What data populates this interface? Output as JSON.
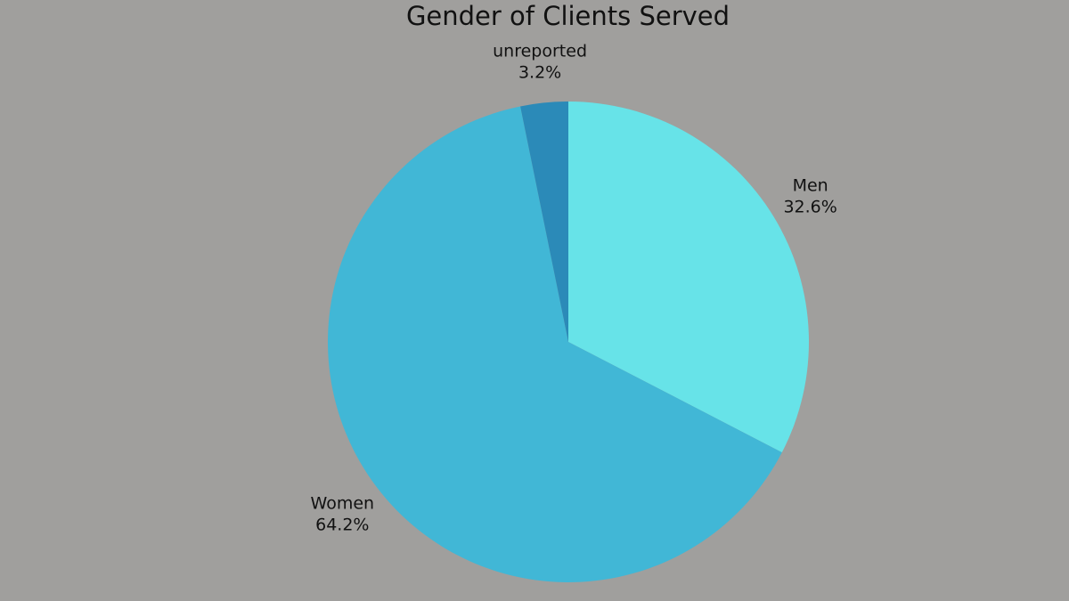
{
  "chart_data": {
    "type": "pie",
    "title": "Gender of Clients Served",
    "slices": [
      {
        "label": "Men",
        "value": 32.6,
        "display": "32.6%",
        "color": "#67e3e8"
      },
      {
        "label": "Women",
        "value": 64.2,
        "display": "64.2%",
        "color": "#41b7d6"
      },
      {
        "label": "unreported",
        "value": 3.2,
        "display": "3.2%",
        "color": "#2b8ab8"
      }
    ],
    "start_angle": "12 o'clock",
    "direction": "clockwise",
    "legend": "none"
  },
  "colors": {
    "background": "#a09f9d",
    "text": "#111111"
  }
}
